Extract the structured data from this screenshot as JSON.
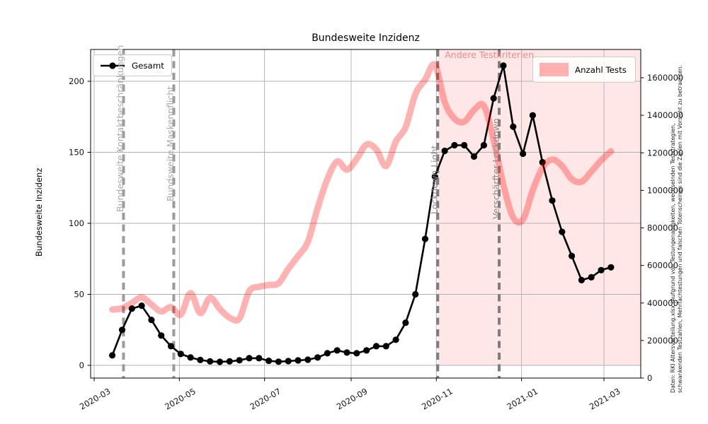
{
  "figure": {
    "title": "Bundesweite Inzidenz",
    "y_left_label": "Bundesweite Inzidenz",
    "caption_line1": "Daten: RKI Altersverteilung.xlsx |Aufgrund von Testungenauigkeiten, wechselnden Teststrategien,",
    "caption_line2": "schwankenden Testzahlen, Mehrfachtestungen und falschen Totenscheinen sind die Zahlen mit Vorsicht zu betrachten."
  },
  "legends": {
    "gesamt": "Gesamt",
    "tests": "Anzahl Tests"
  },
  "chart_data": {
    "type": "line",
    "title": "Bundesweite Inzidenz",
    "x_start_date": "2020-03-14",
    "x_step_days": 7,
    "series": [
      {
        "name": "Gesamt",
        "axis": "left",
        "color": "#000000",
        "marker": "circle",
        "linewidth": 2.6,
        "values": [
          7,
          25,
          40,
          42,
          32,
          21,
          13.5,
          8,
          5.5,
          3.8,
          2.8,
          2.5,
          2.8,
          3.6,
          5,
          5,
          3.2,
          2.6,
          3,
          3.5,
          4,
          5.5,
          8.5,
          10.5,
          9,
          8.5,
          10.5,
          13.5,
          13.5,
          18,
          30,
          50,
          89,
          133,
          151,
          155,
          155,
          147,
          155,
          188,
          211,
          168,
          149,
          176,
          143,
          116,
          94,
          77,
          60,
          62,
          67,
          69
        ]
      },
      {
        "name": "Anzahl Tests",
        "axis": "right",
        "color": "#ff0000",
        "opacity": 0.3,
        "linewidth": 9,
        "values": [
          365000,
          372000,
          400000,
          430000,
          392000,
          355000,
          378000,
          338000,
          452000,
          346000,
          428000,
          368000,
          322000,
          318000,
          462000,
          486000,
          496000,
          505000,
          582000,
          650000,
          726000,
          905000,
          1060000,
          1154000,
          1110000,
          1168000,
          1244000,
          1218000,
          1130000,
          1260000,
          1336000,
          1512000,
          1590000,
          1668000,
          1470000,
          1382000,
          1366000,
          1428000,
          1450000,
          1270000,
          1030000,
          856000,
          844000,
          1000000,
          1120000,
          1164000,
          1130000,
          1060000,
          1046000,
          1100000,
          1160000,
          1208000
        ]
      }
    ],
    "x_ticks": [
      {
        "label": "2020-03",
        "date": "2020-03-01"
      },
      {
        "label": "2020-05",
        "date": "2020-05-01"
      },
      {
        "label": "2020-07",
        "date": "2020-07-01"
      },
      {
        "label": "2020-09",
        "date": "2020-09-01"
      },
      {
        "label": "2020-11",
        "date": "2020-11-01"
      },
      {
        "label": "2021-01",
        "date": "2021-01-01"
      },
      {
        "label": "2021-03",
        "date": "2021-03-01"
      }
    ],
    "y_left": {
      "label": "Bundesweite Inzidenz",
      "ticks": [
        0,
        50,
        100,
        150,
        200
      ],
      "range": [
        -9.3,
        231.3
      ]
    },
    "y_right": {
      "ticks": [
        0,
        200000,
        400000,
        600000,
        800000,
        1000000,
        1200000,
        1400000,
        1600000
      ],
      "range": [
        0,
        1751000
      ]
    },
    "events": [
      {
        "date": "2020-03-22",
        "label": "Bundesweite Kontaktbeschränkungen",
        "line_color": "#9b9b9b",
        "label_color": "#a8a8a8"
      },
      {
        "date": "2020-04-27",
        "label": "Bundsweite Maskenpflicht",
        "line_color": "#9b9b9b",
        "label_color": "#a8a8a8"
      },
      {
        "date": "2020-11-02",
        "label": "Lockdown Light",
        "line_color": "#7d7d7d",
        "label_color": "#8a8a8a"
      },
      {
        "date": "2020-12-16",
        "label": "Verschärfter Lockdown",
        "line_color": "#7d7d7d",
        "label_color": "#8a8a8a"
      }
    ],
    "shaded_region": {
      "start_date": "2020-11-02",
      "label": "Andere Testkriterien",
      "color": "#ff0000",
      "opacity": 0.095,
      "label_color": "#f08885"
    },
    "grid": true,
    "grid_color": "#b0b0b0",
    "legend_positions": [
      "upper left",
      "upper right"
    ]
  }
}
